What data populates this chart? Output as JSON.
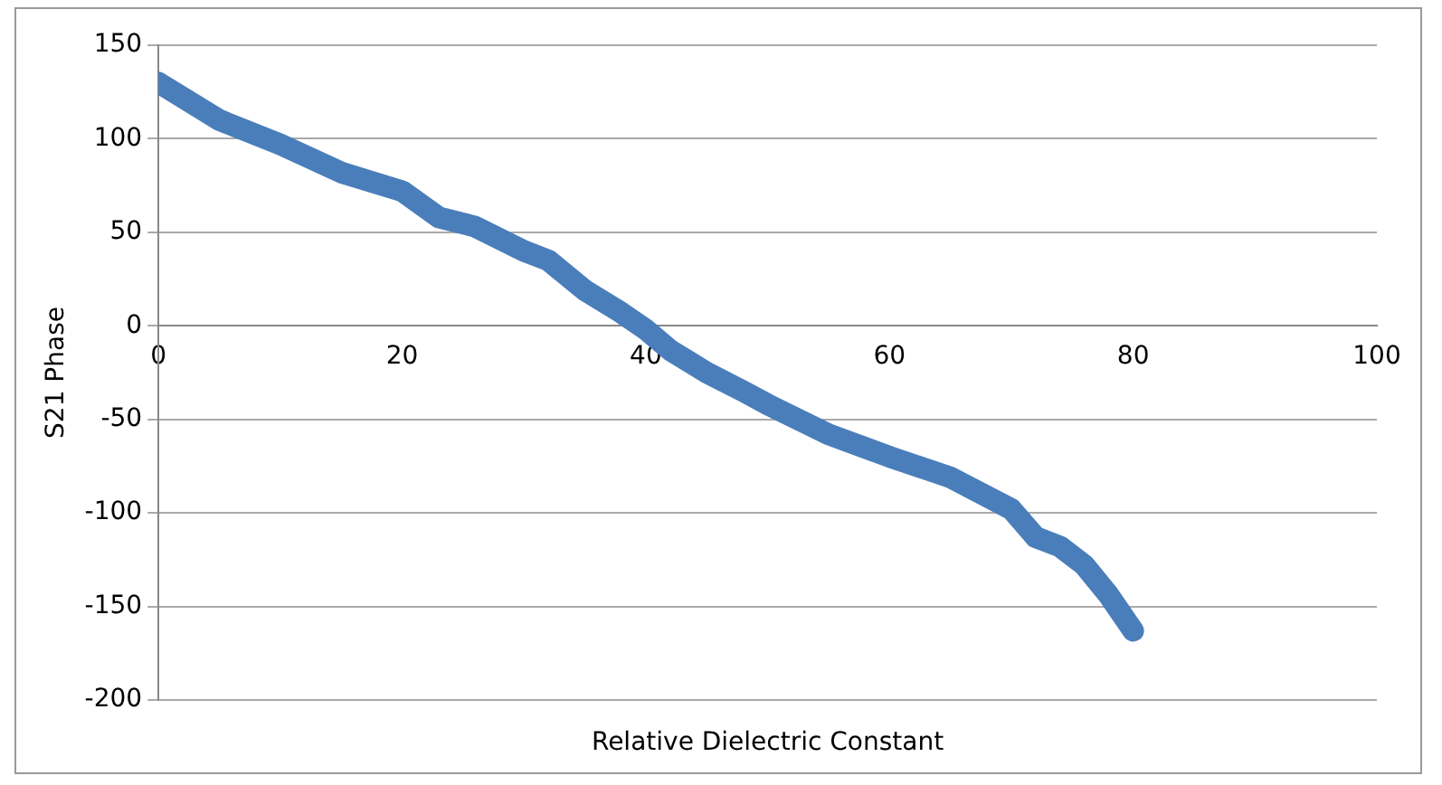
{
  "chart_data": {
    "type": "line",
    "xlabel": "Relative Dielectric Constant",
    "ylabel": "S21 Phase",
    "x": [
      0,
      5,
      10,
      15,
      20,
      23,
      26,
      30,
      32,
      35,
      38,
      40,
      42,
      45,
      48,
      50,
      55,
      60,
      65,
      70,
      72,
      74,
      76,
      78,
      80
    ],
    "series": [
      {
        "color": "#4a7ebb",
        "values": [
          130,
          110,
          97,
          82,
          72,
          58,
          53,
          40,
          35,
          19,
          7,
          -2,
          -13,
          -25,
          -35,
          -42,
          -58,
          -70,
          -81,
          -98,
          -113,
          -118,
          -128,
          -144,
          -163
        ]
      }
    ],
    "xlim": [
      0,
      100
    ],
    "xticks": [
      0,
      20,
      40,
      60,
      80,
      100
    ],
    "ylim": [
      -200,
      150
    ],
    "yticks": [
      -200,
      -150,
      -100,
      -50,
      0,
      50,
      100,
      150
    ],
    "grid": "y",
    "legend": false,
    "marker": "none",
    "line_style": "solid"
  }
}
